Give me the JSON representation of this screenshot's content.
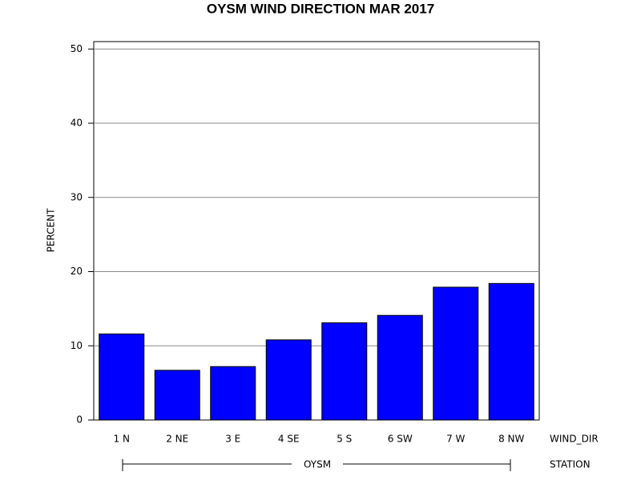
{
  "chart_data": {
    "type": "bar",
    "title": "OYSM WIND DIRECTION MAR 2017",
    "ylabel": "PERCENT",
    "xlabel": "WIND_DIR",
    "group_label": "STATION",
    "group": "OYSM",
    "categories": [
      "1 N",
      "2 NE",
      "3 E",
      "4 SE",
      "5 S",
      "6 SW",
      "7 W",
      "8 NW"
    ],
    "values": [
      11.6,
      6.7,
      7.2,
      10.8,
      13.1,
      14.1,
      17.9,
      18.4
    ],
    "color": "#0000ff",
    "ylim": [
      0,
      51
    ],
    "yticks": [
      0,
      10,
      20,
      30,
      40,
      50
    ],
    "grid": true
  }
}
